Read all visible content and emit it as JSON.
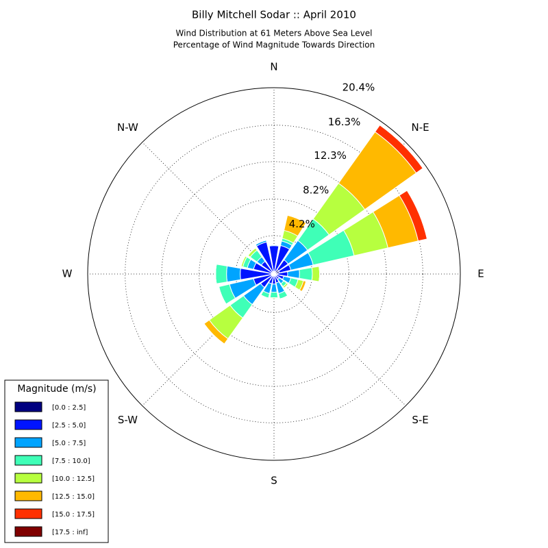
{
  "chart_data": {
    "type": "windrose",
    "title": "Billy Mitchell Sodar :: April 2010",
    "subtitle": [
      "Wind Distribution at 61 Meters Above Sea Level",
      "Percentage of Wind Magnitude Towards Direction"
    ],
    "legend_title": "Magnitude (m/s)",
    "legend": "lower left",
    "x": [
      0,
      22.5,
      45,
      67.5,
      90,
      112.5,
      135,
      157.5,
      180,
      202.5,
      225,
      247.5,
      270,
      292.5,
      315,
      337.5
    ],
    "xticks": [
      {
        "value": 0,
        "label": "N"
      },
      {
        "value": 45,
        "label": "N-E"
      },
      {
        "value": 90,
        "label": "E"
      },
      {
        "value": 135,
        "label": "S-E"
      },
      {
        "value": 180,
        "label": "S"
      },
      {
        "value": 225,
        "label": "S-W"
      },
      {
        "value": 270,
        "label": "W"
      },
      {
        "value": 315,
        "label": "N-W"
      }
    ],
    "rlim": [
      0,
      20.4
    ],
    "rticks": [
      {
        "value": 4.2,
        "label": "4.2%"
      },
      {
        "value": 8.2,
        "label": "8.2%"
      },
      {
        "value": 12.3,
        "label": "12.3%"
      },
      {
        "value": 16.3,
        "label": "16.3%"
      },
      {
        "value": 20.4,
        "label": "20.4%"
      }
    ],
    "grid": true,
    "series": [
      {
        "name": "[0.0 : 2.5]",
        "color": "#000080",
        "values": [
          0.3,
          0.3,
          0.6,
          0.6,
          0.4,
          0.3,
          0.2,
          0.2,
          0.2,
          0.2,
          0.3,
          0.3,
          0.3,
          0.3,
          0.2,
          0.3
        ]
      },
      {
        "name": "[2.5 : 5.0]",
        "color": "#0014ff",
        "values": [
          2.8,
          2.9,
          1.3,
          1.3,
          1.1,
          0.8,
          0.5,
          0.8,
          0.9,
          0.9,
          1.5,
          2.0,
          3.4,
          2.0,
          1.5,
          3.3
        ]
      },
      {
        "name": "[5.0 : 7.5]",
        "color": "#00a4ff",
        "values": [
          0.1,
          0.5,
          2.6,
          2.5,
          1.3,
          0.8,
          0.6,
          1.2,
          0.9,
          1.1,
          2.3,
          2.7,
          1.5,
          0.7,
          0.6,
          0.2
        ]
      },
      {
        "name": "[7.5 : 10.0]",
        "color": "#3fffb7",
        "values": [
          0,
          0.3,
          2.9,
          4.6,
          1.4,
          0.8,
          0.4,
          0.6,
          0.6,
          0.5,
          1.8,
          1.2,
          1.2,
          0.5,
          0.9,
          0
        ]
      },
      {
        "name": "[10.0 : 12.5]",
        "color": "#b7ff3f",
        "values": [
          0,
          0.9,
          4.8,
          3.8,
          0.8,
          0.6,
          0.2,
          0,
          0.1,
          0,
          2.8,
          0,
          0,
          0.2,
          0.3,
          0
        ]
      },
      {
        "name": "[12.5 : 15.0]",
        "color": "#ffb900",
        "values": [
          0,
          1.7,
          6.9,
          3.4,
          0,
          0.3,
          0,
          0,
          0,
          0,
          0.7,
          0,
          0,
          0,
          0,
          0
        ]
      },
      {
        "name": "[15.0 : 17.5]",
        "color": "#ff3000",
        "values": [
          0,
          0,
          0.9,
          1.0,
          0,
          0,
          0,
          0,
          0,
          0,
          0,
          0,
          0,
          0,
          0,
          0
        ]
      },
      {
        "name": "[17.5 : inf]",
        "color": "#800000",
        "values": [
          0,
          0,
          0,
          0,
          0,
          0,
          0,
          0,
          0,
          0,
          0,
          0,
          0,
          0,
          0,
          0
        ]
      }
    ]
  }
}
